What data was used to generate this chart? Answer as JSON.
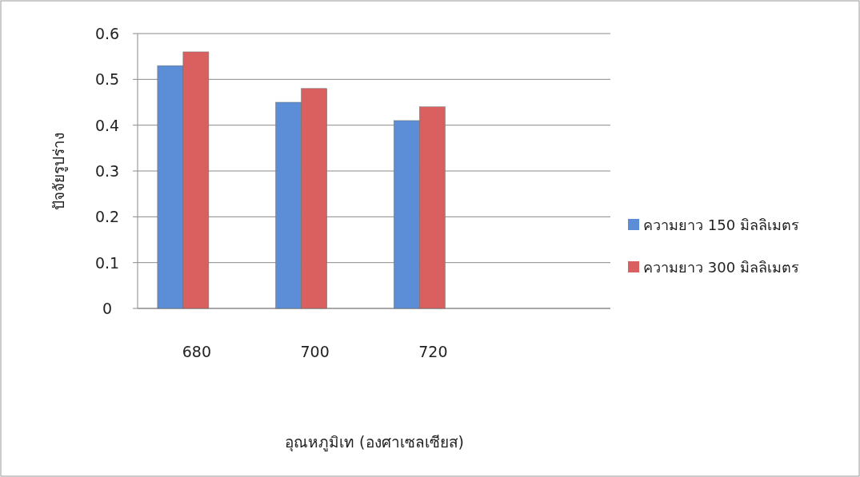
{
  "chart_data": {
    "type": "bar",
    "xlabel": "อุณหภูมิเท (องศาเซลเซียส)",
    "ylabel": "ปัจจัยรูปร่าง",
    "categories": [
      "680",
      "700",
      "720",
      null
    ],
    "series": [
      {
        "name": "ความยาว 150 มิลลิเมตร",
        "color": "#5b8ed6",
        "values": [
          0.53,
          0.45,
          0.41,
          null
        ]
      },
      {
        "name": "ความยาว 300 มิลลิเมตร",
        "color": "#d9605e",
        "values": [
          0.56,
          0.48,
          0.44,
          null
        ]
      }
    ],
    "ylim": [
      0,
      0.6
    ],
    "yticks": [
      0,
      0.1,
      0.2,
      0.3,
      0.4,
      0.5,
      0.6
    ],
    "grid": "y",
    "legend": "right"
  }
}
